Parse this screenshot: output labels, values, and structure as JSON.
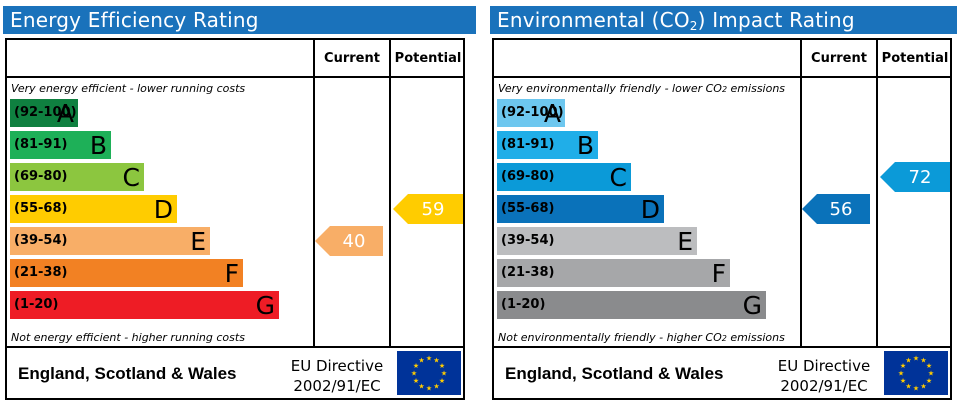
{
  "chart_data": [
    {
      "type": "bar",
      "title": "Energy Efficiency Rating",
      "columns": [
        "Current",
        "Potential"
      ],
      "top_caption": "Very energy efficient - lower running costs",
      "bottom_caption": "Not energy efficient - higher running costs",
      "bands": [
        {
          "range": "(92-100)",
          "letter": "A",
          "color": "#0f8040",
          "text_color": "#000000",
          "level": 1
        },
        {
          "range": "(81-91)",
          "letter": "B",
          "color": "#1eb058",
          "text_color": "#000000",
          "level": 2
        },
        {
          "range": "(69-80)",
          "letter": "C",
          "color": "#8cc63f",
          "text_color": "#000000",
          "level": 3
        },
        {
          "range": "(55-68)",
          "letter": "D",
          "color": "#ffcc00",
          "text_color": "#000000",
          "level": 4
        },
        {
          "range": "(39-54)",
          "letter": "E",
          "color": "#f8ae67",
          "text_color": "#000000",
          "level": 5
        },
        {
          "range": "(21-38)",
          "letter": "F",
          "color": "#f28123",
          "text_color": "#000000",
          "level": 6
        },
        {
          "range": "(1-20)",
          "letter": "G",
          "color": "#ee1c25",
          "text_color": "#000000",
          "level": 7
        }
      ],
      "current": {
        "value": "40",
        "band_index": 4,
        "color": "#f8ae67"
      },
      "potential": {
        "value": "59",
        "band_index": 3,
        "color": "#ffcc00"
      },
      "footer": {
        "region": "England, Scotland & Wales",
        "directive_line1": "EU Directive",
        "directive_line2": "2002/91/EC"
      }
    },
    {
      "type": "bar",
      "title": "Environmental (CO",
      "title_sub": "2",
      "title_end": ") Impact Rating",
      "columns": [
        "Current",
        "Potential"
      ],
      "top_caption": "Very environmentally friendly - lower CO",
      "top_caption_sub": "2",
      "top_caption_end": " emissions",
      "bottom_caption": "Not environmentally friendly - higher CO",
      "bottom_caption_sub": "2",
      "bottom_caption_end": " emissions",
      "bands": [
        {
          "range": "(92-100)",
          "letter": "A",
          "color": "#6dc7ef",
          "text_color": "#000000",
          "level": 1
        },
        {
          "range": "(81-91)",
          "letter": "B",
          "color": "#20aee8",
          "text_color": "#000000",
          "level": 2
        },
        {
          "range": "(69-80)",
          "letter": "C",
          "color": "#0b9ad8",
          "text_color": "#000000",
          "level": 3
        },
        {
          "range": "(55-68)",
          "letter": "D",
          "color": "#0a72ba",
          "text_color": "#000000",
          "level": 4
        },
        {
          "range": "(39-54)",
          "letter": "E",
          "color": "#bcbdbf",
          "text_color": "#000000",
          "level": 5
        },
        {
          "range": "(21-38)",
          "letter": "F",
          "color": "#a6a7a9",
          "text_color": "#000000",
          "level": 6
        },
        {
          "range": "(1-20)",
          "letter": "G",
          "color": "#8a8b8d",
          "text_color": "#000000",
          "level": 7
        }
      ],
      "current": {
        "value": "56",
        "band_index": 3,
        "color": "#0a72ba"
      },
      "potential": {
        "value": "72",
        "band_index": 2,
        "color": "#0b9ad8"
      },
      "footer": {
        "region": "England, Scotland & Wales",
        "directive_line1": "EU Directive",
        "directive_line2": "2002/91/EC"
      }
    }
  ]
}
